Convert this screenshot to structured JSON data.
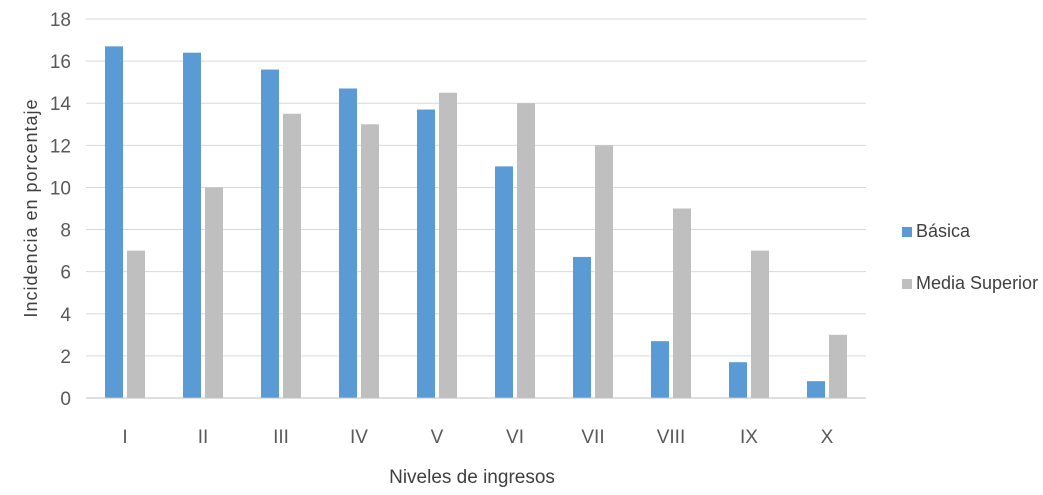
{
  "chart_data": {
    "type": "bar",
    "categories": [
      "I",
      "II",
      "III",
      "IV",
      "V",
      "VI",
      "VII",
      "VIII",
      "IX",
      "X"
    ],
    "series": [
      {
        "name": "Básica",
        "color": "#5b9bd5",
        "values": [
          16.7,
          16.4,
          15.6,
          14.7,
          13.7,
          11.0,
          6.7,
          2.7,
          1.7,
          0.8
        ]
      },
      {
        "name": "Media Superior",
        "color": "#bfbfbf",
        "values": [
          7.0,
          10.0,
          13.5,
          13.0,
          14.5,
          14.0,
          12.0,
          9.0,
          7.0,
          3.0
        ]
      }
    ],
    "xlabel": "Niveles de ingresos",
    "ylabel": "Incidencia en porcentaje",
    "ylim": [
      0,
      18
    ],
    "yticks": [
      0,
      2,
      4,
      6,
      8,
      10,
      12,
      14,
      16,
      18
    ],
    "grid": true,
    "legend_position": "right",
    "colors": {
      "grid": "#d9d9d9",
      "axis": "#bfbfbf",
      "text": "#595959"
    }
  }
}
